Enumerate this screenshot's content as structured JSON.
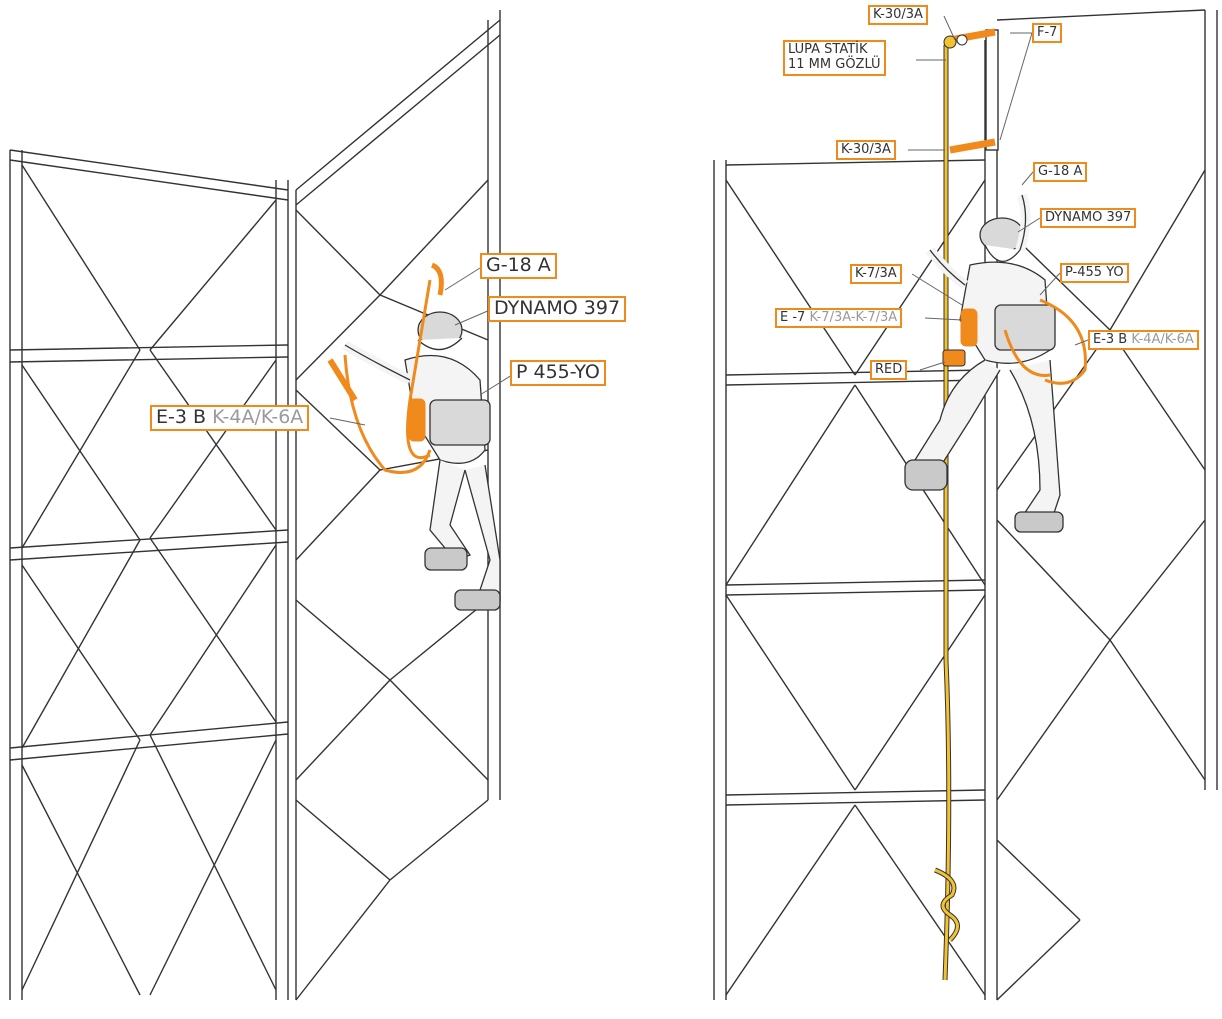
{
  "colors": {
    "accent": "#f08a1c",
    "rope": "#f2c230",
    "ink": "#333333",
    "muted": "#9a9a9a"
  },
  "left_labels": {
    "g18a": "G-18 A",
    "dynamo": "DYNAMO 397",
    "p455": "P 455-YO",
    "e3b_main": "E-3 B",
    "e3b_sub": "K-4A/K-6A"
  },
  "right_labels": {
    "k30_top": "K-30/3A",
    "lupa_line1": "LUPA STATİK",
    "lupa_line2": "11 MM GÖZLÜ",
    "f7": "F-7",
    "k30_mid": "K-30/3A",
    "g18a": "G-18 A",
    "dynamo": "DYNAMO 397",
    "k73a": "K-7/3A",
    "p455": "P-455 YO",
    "e7_main": "E -7",
    "e7_sub": "K-7/3A-K-7/3A",
    "red": "RED",
    "e3b_main": "E-3 B",
    "e3b_sub": "K-4A/K-6A"
  }
}
